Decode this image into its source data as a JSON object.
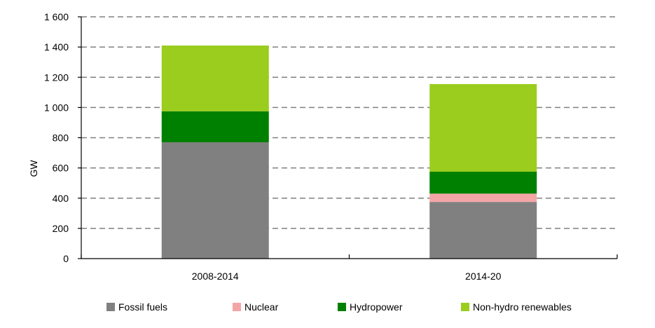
{
  "chart_data": {
    "type": "bar",
    "stacked": true,
    "title": "",
    "xlabel": "",
    "ylabel": "GW",
    "ylim": [
      0,
      1600
    ],
    "yticks": [
      0,
      200,
      400,
      600,
      800,
      1000,
      1200,
      1400,
      1600
    ],
    "ytick_labels": [
      "0",
      "200",
      "400",
      "600",
      "800",
      "1 000",
      "1 200",
      "1 400",
      "1 600"
    ],
    "grid": "horizontal dashed",
    "legend_position": "bottom",
    "categories": [
      "2008-2014",
      "2014-20"
    ],
    "series": [
      {
        "name": "Fossil fuels",
        "color": "#808080",
        "values": [
          770,
          375
        ]
      },
      {
        "name": "Nuclear",
        "color": "#f4a6a6",
        "values": [
          0,
          55
        ]
      },
      {
        "name": "Hydropower",
        "color": "#008000",
        "values": [
          205,
          145
        ]
      },
      {
        "name": "Non-hydro renewables",
        "color": "#9acd1e",
        "values": [
          435,
          580
        ]
      }
    ]
  }
}
